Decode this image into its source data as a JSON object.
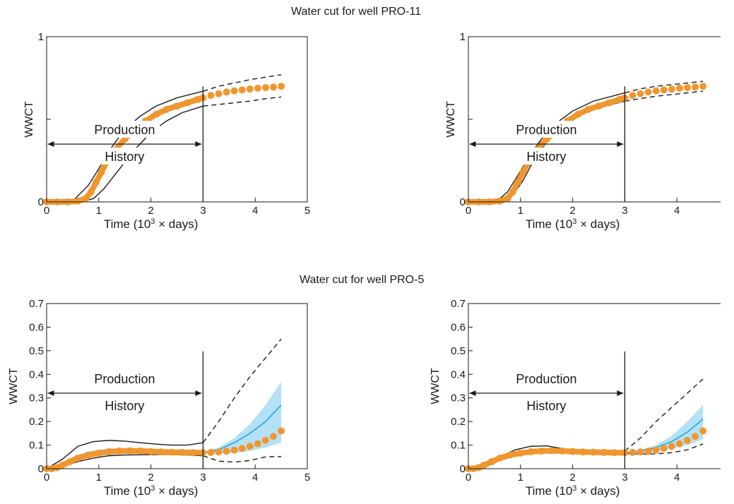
{
  "figure": {
    "groups": [
      {
        "title": "Water cut for well PRO-11"
      },
      {
        "title": "Water cut for well PRO-5"
      }
    ]
  },
  "colors": {
    "observed": "#F0962E",
    "band": "#A8DCF5",
    "mean_line": "#1BA3D8",
    "axis": "#1a1a1a"
  },
  "chart_data": [
    {
      "type": "line",
      "group_title": "Water cut for well PRO-11",
      "xlabel_html_parts": [
        "Time (10",
        "3",
        " × days)"
      ],
      "ylabel": "WWCT",
      "xlim": [
        0,
        5
      ],
      "ylim": [
        0,
        1
      ],
      "xticks": [
        "0",
        "1",
        "2",
        "3",
        "4",
        "5"
      ],
      "yticks": [
        {
          "v": 0,
          "label": "0"
        },
        {
          "v": 0.5,
          "label": ""
        },
        {
          "v": 1,
          "label": "1"
        }
      ],
      "history_end": 3,
      "annotation": {
        "top": "Production",
        "bottom": "History"
      },
      "observed": {
        "x": [
          0,
          0.2,
          0.4,
          0.6,
          0.75,
          0.85,
          0.95,
          1.05,
          1.15,
          1.3,
          1.5,
          1.7,
          1.9,
          2.1,
          2.3,
          2.5,
          2.7,
          2.9,
          3.0,
          3.15,
          3.3,
          3.45,
          3.6,
          3.75,
          3.9,
          4.05,
          4.2,
          4.35,
          4.5
        ],
        "y": [
          0,
          0,
          0,
          0.005,
          0.02,
          0.06,
          0.12,
          0.18,
          0.24,
          0.31,
          0.38,
          0.44,
          0.49,
          0.53,
          0.56,
          0.58,
          0.6,
          0.62,
          0.63,
          0.645,
          0.655,
          0.665,
          0.672,
          0.678,
          0.683,
          0.688,
          0.692,
          0.695,
          0.7
        ]
      },
      "series": [
        {
          "style": "solid",
          "x": [
            0,
            0.5,
            0.8,
            1.0,
            1.2,
            1.5,
            1.8,
            2.1,
            2.5,
            3.0
          ],
          "y": [
            0,
            0.005,
            0.1,
            0.2,
            0.31,
            0.44,
            0.52,
            0.58,
            0.63,
            0.67
          ]
        },
        {
          "style": "solid",
          "x": [
            0,
            0.7,
            0.9,
            1.1,
            1.4,
            1.7,
            2.0,
            2.3,
            2.6,
            3.0
          ],
          "y": [
            0,
            0.005,
            0.02,
            0.08,
            0.2,
            0.32,
            0.42,
            0.49,
            0.54,
            0.58
          ]
        },
        {
          "style": "dashed",
          "x": [
            3.0,
            3.3,
            3.6,
            3.9,
            4.2,
            4.5
          ],
          "y": [
            0.67,
            0.7,
            0.72,
            0.74,
            0.755,
            0.77
          ]
        },
        {
          "style": "dashed",
          "x": [
            3.0,
            3.3,
            3.6,
            3.9,
            4.2,
            4.5
          ],
          "y": [
            0.58,
            0.59,
            0.6,
            0.61,
            0.625,
            0.635
          ]
        }
      ]
    },
    {
      "type": "line",
      "group_title": "Water cut for well PRO-11",
      "xlabel_html_parts": [
        "Time (10",
        "3",
        " × days)"
      ],
      "ylabel": "WWCT",
      "xlim": [
        0,
        5
      ],
      "ylim": [
        0,
        1
      ],
      "xticks": [
        "0",
        "1",
        "2",
        "3",
        "4",
        "5"
      ],
      "yticks": [
        {
          "v": 0,
          "label": "0"
        },
        {
          "v": 0.5,
          "label": ""
        },
        {
          "v": 1,
          "label": "1"
        }
      ],
      "history_end": 3,
      "annotation": {
        "top": "Production",
        "bottom": "History"
      },
      "observed": {
        "x": [
          0,
          0.2,
          0.4,
          0.6,
          0.75,
          0.85,
          0.95,
          1.05,
          1.15,
          1.3,
          1.5,
          1.7,
          1.9,
          2.1,
          2.3,
          2.5,
          2.7,
          2.9,
          3.0,
          3.15,
          3.3,
          3.45,
          3.6,
          3.75,
          3.9,
          4.05,
          4.2,
          4.35,
          4.5
        ],
        "y": [
          0,
          0,
          0,
          0.005,
          0.02,
          0.06,
          0.12,
          0.18,
          0.24,
          0.31,
          0.38,
          0.44,
          0.49,
          0.53,
          0.56,
          0.58,
          0.6,
          0.62,
          0.63,
          0.645,
          0.655,
          0.665,
          0.672,
          0.678,
          0.683,
          0.688,
          0.692,
          0.695,
          0.7
        ]
      },
      "series": [
        {
          "style": "solid",
          "x": [
            0,
            0.55,
            0.75,
            0.95,
            1.15,
            1.4,
            1.7,
            2.0,
            2.4,
            3.0
          ],
          "y": [
            0,
            0.005,
            0.06,
            0.16,
            0.27,
            0.38,
            0.48,
            0.55,
            0.61,
            0.66
          ]
        },
        {
          "style": "solid",
          "x": [
            0,
            0.7,
            0.85,
            1.05,
            1.25,
            1.5,
            1.8,
            2.1,
            2.5,
            3.0
          ],
          "y": [
            0,
            0.005,
            0.04,
            0.13,
            0.25,
            0.36,
            0.45,
            0.52,
            0.57,
            0.61
          ]
        },
        {
          "style": "dashed",
          "x": [
            3.0,
            3.3,
            3.6,
            3.9,
            4.2,
            4.5
          ],
          "y": [
            0.66,
            0.685,
            0.7,
            0.71,
            0.72,
            0.73
          ]
        },
        {
          "style": "dashed",
          "x": [
            3.0,
            3.3,
            3.6,
            3.9,
            4.2,
            4.5
          ],
          "y": [
            0.61,
            0.625,
            0.64,
            0.65,
            0.66,
            0.67
          ]
        }
      ]
    },
    {
      "type": "line",
      "group_title": "Water cut for well PRO-5",
      "xlabel_html_parts": [
        "Time (10",
        "3",
        " × days)"
      ],
      "ylabel": "WWCT",
      "xlim": [
        0,
        5
      ],
      "ylim": [
        0,
        0.7
      ],
      "xticks": [
        "0",
        "1",
        "2",
        "3",
        "4",
        "5"
      ],
      "yticks": [
        {
          "v": 0,
          "label": "0"
        },
        {
          "v": 0.1,
          "label": "0.1"
        },
        {
          "v": 0.2,
          "label": "0.2"
        },
        {
          "v": 0.3,
          "label": "0.3"
        },
        {
          "v": 0.4,
          "label": "0.4"
        },
        {
          "v": 0.5,
          "label": "0.5"
        },
        {
          "v": 0.6,
          "label": "0.6"
        },
        {
          "v": 0.7,
          "label": "0.7"
        }
      ],
      "history_end": 3,
      "annotation": {
        "top": "Production",
        "bottom": "History"
      },
      "observed": {
        "x": [
          0,
          0.1,
          0.2,
          0.3,
          0.45,
          0.6,
          0.8,
          1.0,
          1.2,
          1.4,
          1.6,
          1.8,
          2.0,
          2.2,
          2.4,
          2.6,
          2.8,
          3.0,
          3.15,
          3.3,
          3.45,
          3.6,
          3.75,
          3.9,
          4.05,
          4.2,
          4.35,
          4.5
        ],
        "y": [
          0,
          0,
          0.005,
          0.015,
          0.03,
          0.045,
          0.058,
          0.066,
          0.072,
          0.075,
          0.076,
          0.075,
          0.073,
          0.071,
          0.07,
          0.069,
          0.068,
          0.068,
          0.069,
          0.071,
          0.074,
          0.079,
          0.086,
          0.095,
          0.106,
          0.12,
          0.137,
          0.16
        ]
      },
      "band": {
        "x": [
          0,
          0.3,
          0.6,
          0.9,
          1.2,
          1.5,
          1.8,
          2.1,
          2.4,
          2.7,
          3.0,
          3.3,
          3.6,
          3.9,
          4.2,
          4.5
        ],
        "upper": [
          0,
          0.025,
          0.06,
          0.078,
          0.086,
          0.086,
          0.082,
          0.078,
          0.075,
          0.073,
          0.073,
          0.09,
          0.13,
          0.19,
          0.27,
          0.37
        ],
        "lower": [
          0,
          0.01,
          0.035,
          0.05,
          0.058,
          0.062,
          0.064,
          0.064,
          0.064,
          0.064,
          0.063,
          0.063,
          0.066,
          0.075,
          0.09,
          0.11
        ]
      },
      "mean": {
        "x": [
          3.0,
          3.3,
          3.6,
          3.9,
          4.2,
          4.5
        ],
        "y": [
          0.068,
          0.08,
          0.11,
          0.15,
          0.2,
          0.27
        ]
      },
      "series": [
        {
          "style": "solid",
          "x": [
            0,
            0.3,
            0.6,
            0.9,
            1.2,
            1.5,
            1.8,
            2.1,
            2.4,
            2.7,
            3.0
          ],
          "y": [
            0,
            0.04,
            0.095,
            0.115,
            0.12,
            0.117,
            0.11,
            0.104,
            0.1,
            0.1,
            0.11
          ]
        },
        {
          "style": "solid",
          "x": [
            0,
            0.3,
            0.6,
            0.9,
            1.2,
            1.5,
            1.8,
            2.1,
            2.4,
            2.7,
            3.0
          ],
          "y": [
            0,
            0.01,
            0.03,
            0.045,
            0.055,
            0.058,
            0.059,
            0.06,
            0.06,
            0.058,
            0.055
          ]
        },
        {
          "style": "dashed",
          "x": [
            3.0,
            3.3,
            3.6,
            3.9,
            4.2,
            4.5
          ],
          "y": [
            0.11,
            0.2,
            0.3,
            0.39,
            0.47,
            0.55
          ]
        },
        {
          "style": "dashed",
          "x": [
            3.0,
            3.3,
            3.6,
            3.9,
            4.2,
            4.5
          ],
          "y": [
            0.055,
            0.032,
            0.028,
            0.035,
            0.05,
            0.052
          ]
        }
      ]
    },
    {
      "type": "line",
      "group_title": "Water cut for well PRO-5",
      "xlabel_html_parts": [
        "Time (10",
        "3",
        " × days)"
      ],
      "ylabel": "WWCT",
      "xlim": [
        0,
        5
      ],
      "ylim": [
        0,
        0.7
      ],
      "xticks": [
        "0",
        "1",
        "2",
        "3",
        "4",
        "5"
      ],
      "yticks": [
        {
          "v": 0,
          "label": "0"
        },
        {
          "v": 0.1,
          "label": "0.1"
        },
        {
          "v": 0.2,
          "label": "0.2"
        },
        {
          "v": 0.3,
          "label": "0.3"
        },
        {
          "v": 0.4,
          "label": "0.4"
        },
        {
          "v": 0.5,
          "label": "0.5"
        },
        {
          "v": 0.6,
          "label": "0.6"
        },
        {
          "v": 0.7,
          "label": "0.7"
        }
      ],
      "history_end": 3,
      "annotation": {
        "top": "Production",
        "bottom": "History"
      },
      "observed": {
        "x": [
          0,
          0.1,
          0.2,
          0.3,
          0.45,
          0.6,
          0.8,
          1.0,
          1.2,
          1.4,
          1.6,
          1.8,
          2.0,
          2.2,
          2.4,
          2.6,
          2.8,
          3.0,
          3.15,
          3.3,
          3.45,
          3.6,
          3.75,
          3.9,
          4.05,
          4.2,
          4.35,
          4.5
        ],
        "y": [
          0,
          0,
          0.005,
          0.015,
          0.03,
          0.045,
          0.058,
          0.066,
          0.072,
          0.075,
          0.076,
          0.075,
          0.073,
          0.071,
          0.07,
          0.069,
          0.068,
          0.068,
          0.069,
          0.071,
          0.074,
          0.079,
          0.086,
          0.095,
          0.106,
          0.12,
          0.137,
          0.16
        ]
      },
      "band": {
        "x": [
          3.0,
          3.3,
          3.6,
          3.9,
          4.2,
          4.5
        ],
        "upper": [
          0.07,
          0.08,
          0.1,
          0.14,
          0.2,
          0.27
        ],
        "lower": [
          0.066,
          0.068,
          0.074,
          0.085,
          0.1,
          0.125
        ]
      },
      "mean": {
        "x": [
          3.0,
          3.3,
          3.6,
          3.9,
          4.2,
          4.5
        ],
        "y": [
          0.068,
          0.075,
          0.09,
          0.115,
          0.155,
          0.21
        ]
      },
      "series": [
        {
          "style": "solid",
          "x": [
            0,
            0.3,
            0.6,
            0.9,
            1.2,
            1.5,
            1.8,
            2.1,
            2.4,
            2.7,
            3.0
          ],
          "y": [
            0,
            0.015,
            0.05,
            0.08,
            0.095,
            0.097,
            0.085,
            0.075,
            0.072,
            0.072,
            0.075
          ]
        },
        {
          "style": "solid",
          "x": [
            0,
            0.3,
            0.6,
            0.9,
            1.2,
            1.5,
            1.8,
            2.1,
            2.4,
            2.7,
            3.0
          ],
          "y": [
            0,
            0.01,
            0.035,
            0.055,
            0.065,
            0.068,
            0.068,
            0.066,
            0.065,
            0.065,
            0.064
          ]
        },
        {
          "style": "dashed",
          "x": [
            3.0,
            3.3,
            3.6,
            3.9,
            4.2,
            4.5
          ],
          "y": [
            0.075,
            0.13,
            0.2,
            0.26,
            0.32,
            0.38
          ]
        },
        {
          "style": "dashed",
          "x": [
            3.0,
            3.3,
            3.6,
            3.9,
            4.2,
            4.5
          ],
          "y": [
            0.064,
            0.062,
            0.063,
            0.068,
            0.08,
            0.105
          ]
        }
      ]
    }
  ]
}
